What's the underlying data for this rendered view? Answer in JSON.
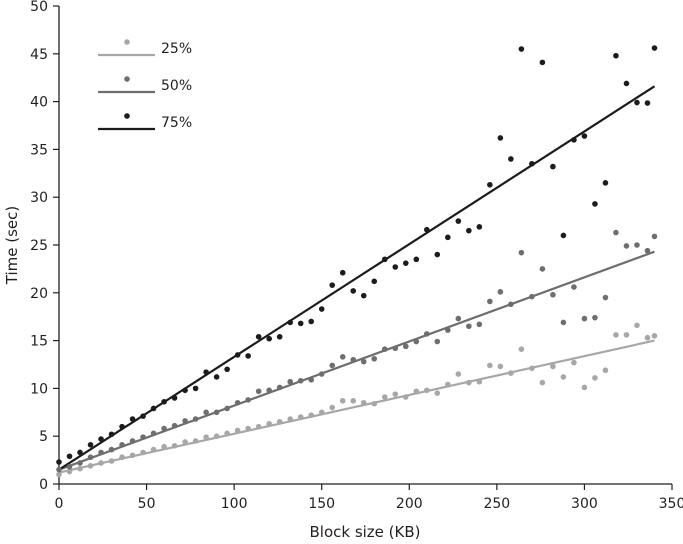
{
  "chart_data": {
    "type": "scatter",
    "title": "",
    "xlabel": "Block size (KB)",
    "ylabel": "Time (sec)",
    "xlim": [
      0,
      350
    ],
    "ylim": [
      0,
      50
    ],
    "xticks": [
      "0",
      "50",
      "100",
      "150",
      "200",
      "250",
      "300",
      "350"
    ],
    "yticks": [
      "0",
      "5",
      "10",
      "15",
      "20",
      "25",
      "30",
      "35",
      "40",
      "45",
      "50"
    ],
    "grid": false,
    "legend_position": "top-left",
    "x": [
      0,
      6,
      12,
      18,
      24,
      30,
      36,
      42,
      48,
      54,
      60,
      66,
      72,
      78,
      84,
      90,
      96,
      102,
      108,
      114,
      120,
      126,
      132,
      138,
      144,
      150,
      156,
      162,
      168,
      174,
      180,
      186,
      192,
      198,
      204,
      210,
      216,
      222,
      228,
      234,
      240,
      246,
      252,
      258,
      264,
      270,
      276,
      282,
      288,
      294,
      300,
      306,
      312,
      318,
      324,
      330,
      336,
      340
    ],
    "series": [
      {
        "name": "25%",
        "color": "#a7a7a7",
        "values": [
          1.0,
          1.3,
          1.6,
          1.9,
          2.2,
          2.4,
          2.8,
          3.0,
          3.3,
          3.6,
          3.9,
          4.0,
          4.4,
          4.5,
          4.9,
          5.0,
          5.3,
          5.6,
          5.8,
          6.0,
          6.3,
          6.5,
          6.8,
          7.0,
          7.2,
          7.5,
          8.0,
          8.7,
          8.7,
          8.5,
          8.4,
          9.1,
          9.4,
          9.1,
          9.7,
          9.8,
          9.5,
          10.4,
          11.5,
          10.6,
          10.7,
          12.4,
          12.3,
          11.6,
          14.1,
          12.1,
          10.6,
          12.3,
          11.2,
          12.7,
          10.1,
          11.1,
          11.9,
          15.6,
          15.6,
          16.6,
          15.3,
          15.5
        ],
        "trend": [
          1.2,
          15.0
        ]
      },
      {
        "name": "50%",
        "color": "#6e6e6e",
        "values": [
          1.5,
          1.8,
          2.2,
          2.8,
          3.3,
          3.6,
          4.1,
          4.5,
          4.9,
          5.3,
          5.8,
          6.1,
          6.6,
          6.8,
          7.5,
          7.5,
          7.9,
          8.5,
          8.8,
          9.7,
          9.8,
          10.1,
          10.7,
          10.8,
          10.9,
          11.5,
          12.4,
          13.3,
          13.0,
          12.8,
          13.1,
          14.1,
          14.2,
          14.4,
          14.9,
          15.7,
          14.9,
          16.1,
          17.3,
          16.5,
          16.7,
          19.1,
          20.1,
          18.8,
          24.2,
          19.6,
          22.5,
          19.8,
          16.9,
          20.6,
          17.3,
          17.4,
          19.5,
          26.3,
          24.9,
          25.0,
          24.4,
          25.9
        ],
        "trend": [
          1.5,
          24.3
        ]
      },
      {
        "name": "75%",
        "color": "#1c1c1c",
        "values": [
          2.3,
          2.9,
          3.3,
          4.1,
          4.7,
          5.2,
          6.0,
          6.8,
          7.1,
          7.9,
          8.6,
          9.0,
          9.8,
          10.0,
          11.7,
          11.2,
          12.0,
          13.5,
          13.4,
          15.4,
          15.2,
          15.4,
          16.9,
          16.8,
          17.0,
          18.3,
          20.8,
          22.1,
          20.2,
          19.7,
          21.2,
          23.5,
          22.7,
          23.1,
          23.5,
          26.6,
          24.0,
          25.8,
          27.5,
          26.5,
          26.9,
          31.3,
          36.2,
          34.0,
          45.5,
          33.5,
          44.1,
          33.2,
          26.0,
          36.0,
          36.4,
          29.3,
          31.5,
          44.8,
          41.9,
          39.9,
          39.85,
          45.6
        ],
        "trend": [
          1.5,
          41.6
        ]
      }
    ]
  }
}
